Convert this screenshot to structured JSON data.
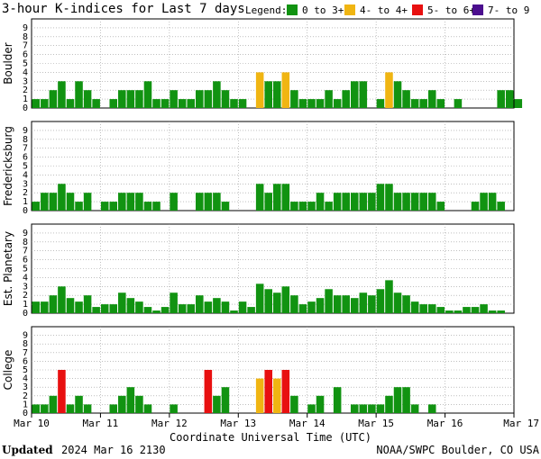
{
  "chart_data": {
    "type": "bar",
    "title": "3-hour K-indices for Last 7 days",
    "legend": {
      "title": "Legend:",
      "items": [
        {
          "label": "0 to 3+",
          "color": "#119311"
        },
        {
          "label": "4- to 4+",
          "color": "#f0b512"
        },
        {
          "label": "5- to 6+",
          "color": "#e81010"
        },
        {
          "label": "7- to 9",
          "color": "#4b0e8e"
        }
      ],
      "position": "top-right"
    },
    "xlabel": "Coordinate Universal Time (UTC)",
    "x_ticks": [
      "Mar 10",
      "Mar 11",
      "Mar 12",
      "Mar 13",
      "Mar 14",
      "Mar 15",
      "Mar 16",
      "Mar 17"
    ],
    "ylim": [
      0,
      9
    ],
    "y_ticks": [
      "0",
      "1",
      "2",
      "3",
      "4",
      "5",
      "6",
      "7",
      "8",
      "9"
    ],
    "grid": true,
    "series": [
      {
        "name": "Boulder",
        "values": [
          1,
          1,
          2,
          3,
          1,
          3,
          2,
          1,
          0,
          1,
          2,
          2,
          2,
          3,
          1,
          1,
          2,
          1,
          1,
          2,
          2,
          3,
          2,
          1,
          1,
          0,
          4,
          3,
          3,
          4,
          2,
          1,
          1,
          1,
          2,
          1,
          2,
          3,
          3,
          0,
          1,
          4,
          3,
          2,
          1,
          1,
          2,
          1,
          0,
          1,
          0,
          0,
          0,
          0,
          2,
          2,
          1,
          0
        ]
      },
      {
        "name": "Fredericksburg",
        "values": [
          1,
          2,
          2,
          3,
          2,
          1,
          2,
          0,
          1,
          1,
          2,
          2,
          2,
          1,
          1,
          0,
          2,
          0,
          0,
          2,
          2,
          2,
          1,
          0,
          0,
          0,
          3,
          2,
          3,
          3,
          1,
          1,
          1,
          2,
          1,
          2,
          2,
          2,
          2,
          2,
          3,
          3,
          2,
          2,
          2,
          2,
          2,
          1,
          0,
          0,
          0,
          1,
          2,
          2,
          1,
          0
        ]
      },
      {
        "name": "Est. Planetary",
        "values": [
          1.3,
          1.3,
          2,
          3,
          1.7,
          1.3,
          2,
          0.7,
          1,
          1,
          2.3,
          1.7,
          1.3,
          0.7,
          0.3,
          0.7,
          2.3,
          1,
          1,
          2,
          1.3,
          1.7,
          1.3,
          0.3,
          1.3,
          0.7,
          3.3,
          2.7,
          2.3,
          3,
          2,
          1,
          1.3,
          1.7,
          2.7,
          2,
          2,
          1.7,
          2.3,
          2,
          2.7,
          3.7,
          2.3,
          2,
          1.3,
          1,
          1,
          0.7,
          0.3,
          0.3,
          0.7,
          0.7,
          1,
          0.3,
          0.3
        ]
      },
      {
        "name": "College",
        "values": [
          1,
          1,
          2,
          5,
          1,
          2,
          1,
          0,
          0,
          1,
          2,
          3,
          2,
          1,
          0,
          0,
          1,
          0,
          0,
          0,
          5,
          2,
          3,
          0,
          0,
          0,
          4,
          5,
          4,
          5,
          2,
          0,
          1,
          2,
          0,
          3,
          0,
          1,
          1,
          1,
          1,
          2,
          3,
          3,
          1,
          0,
          1,
          0,
          0,
          0,
          0,
          0,
          0,
          0,
          0,
          0
        ]
      }
    ]
  },
  "footer": {
    "updated_label": "Updated",
    "updated_value": "2024 Mar 16 2130",
    "source": "NOAA/SWPC Boulder, CO USA"
  }
}
